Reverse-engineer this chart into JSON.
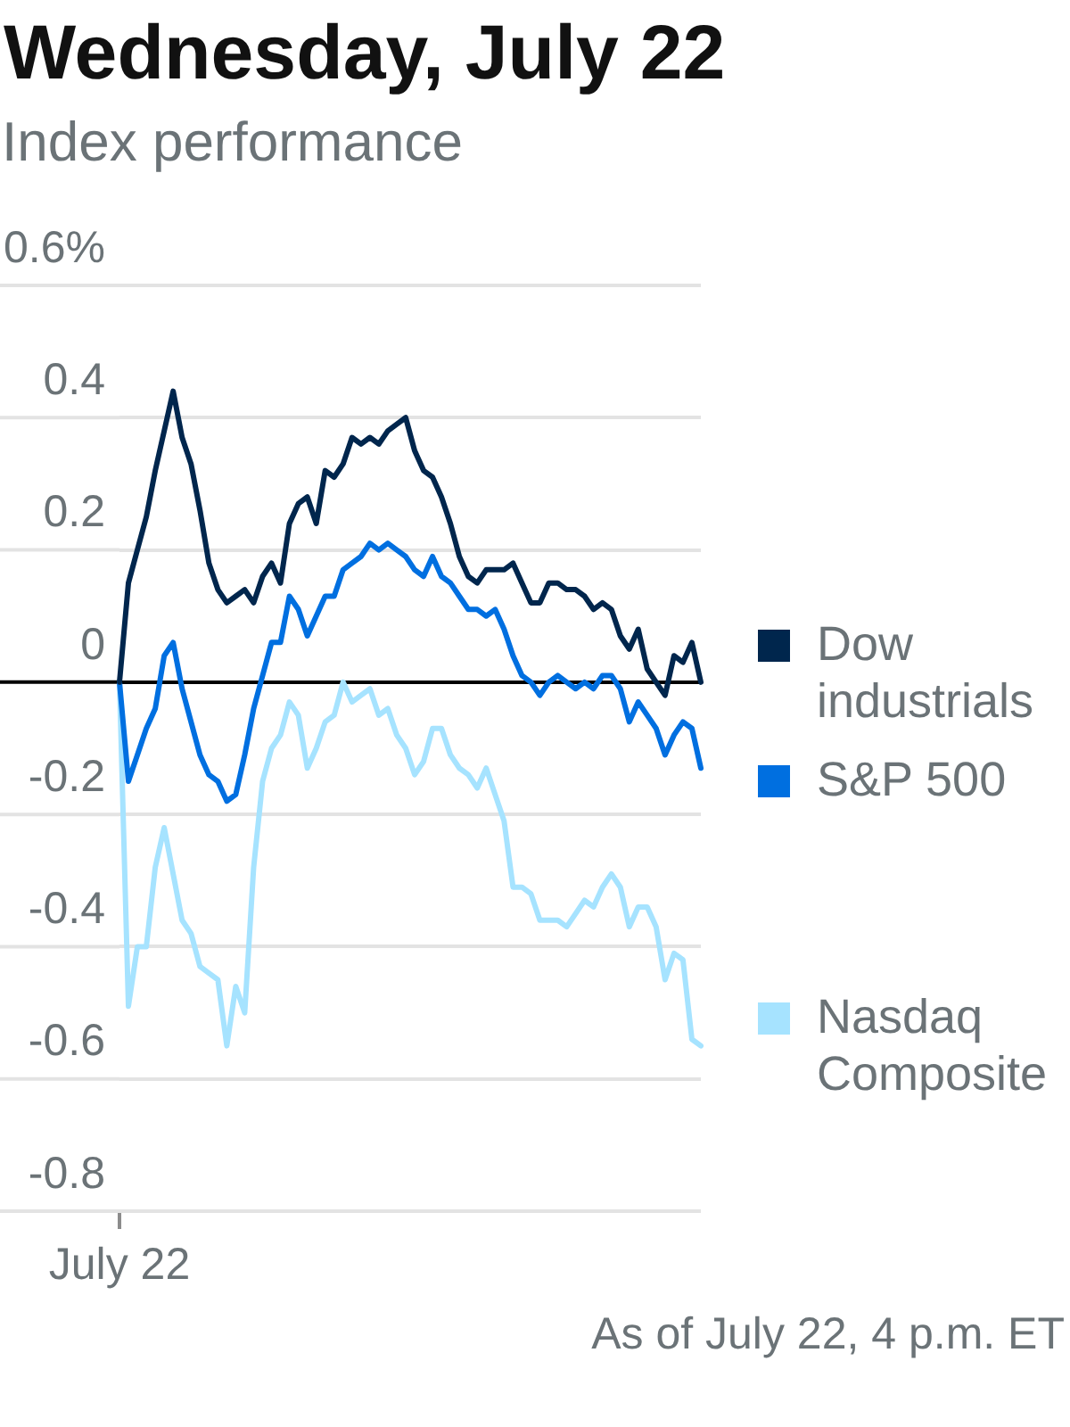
{
  "chart_data": {
    "type": "line",
    "title": "Wednesday, July 22",
    "subtitle": "Index performance",
    "annotations": [
      "As of July 22, 4 p.m. ET"
    ],
    "categories": [
      "July 22",
      null,
      null,
      null,
      null,
      null,
      null,
      null,
      null,
      null,
      null,
      null,
      null,
      null,
      null,
      null,
      null,
      null,
      null,
      null,
      null,
      null,
      null,
      null,
      null,
      null,
      null,
      null,
      null,
      null,
      null,
      null,
      null,
      null,
      null,
      null,
      null,
      null,
      null,
      null,
      null,
      null,
      null,
      null,
      null,
      null,
      null,
      null,
      null,
      null,
      null,
      null,
      null,
      null,
      null,
      null,
      null,
      null,
      null,
      null,
      null,
      null,
      null,
      null,
      null,
      null
    ],
    "series": [
      {
        "name": "Dow industrials",
        "color": "#00264d",
        "values": [
          0,
          0.15,
          0.2,
          0.25,
          0.32,
          0.38,
          0.44,
          0.37,
          0.33,
          0.26,
          0.18,
          0.14,
          0.12,
          0.13,
          0.14,
          0.12,
          0.16,
          0.18,
          0.15,
          0.24,
          0.27,
          0.28,
          0.24,
          0.32,
          0.31,
          0.33,
          0.37,
          0.36,
          0.37,
          0.36,
          0.38,
          0.39,
          0.4,
          0.35,
          0.32,
          0.31,
          0.28,
          0.24,
          0.19,
          0.16,
          0.15,
          0.17,
          0.17,
          0.17,
          0.18,
          0.15,
          0.12,
          0.12,
          0.15,
          0.15,
          0.14,
          0.14,
          0.13,
          0.11,
          0.12,
          0.11,
          0.07,
          0.05,
          0.08,
          0.02,
          0,
          -0.02,
          0.04,
          0.03,
          0.06,
          0
        ]
      },
      {
        "name": "S&P 500",
        "color": "#006fe0",
        "values": [
          0,
          -0.15,
          -0.11,
          -0.07,
          -0.04,
          0.04,
          0.06,
          -0.01,
          -0.06,
          -0.11,
          -0.14,
          -0.15,
          -0.18,
          -0.17,
          -0.11,
          -0.04,
          0.01,
          0.06,
          0.06,
          0.13,
          0.11,
          0.07,
          0.1,
          0.13,
          0.13,
          0.17,
          0.18,
          0.19,
          0.21,
          0.2,
          0.21,
          0.2,
          0.19,
          0.17,
          0.16,
          0.19,
          0.16,
          0.15,
          0.13,
          0.11,
          0.11,
          0.1,
          0.11,
          0.08,
          0.04,
          0.01,
          0,
          -0.02,
          0,
          0.01,
          0,
          -0.01,
          0,
          -0.01,
          0.01,
          0.01,
          -0.01,
          -0.06,
          -0.03,
          -0.05,
          -0.07,
          -0.11,
          -0.08,
          -0.06,
          -0.07,
          -0.13
        ]
      },
      {
        "name": "Nasdaq Composite",
        "color": "#a6e3ff",
        "values": [
          0,
          -0.49,
          -0.4,
          -0.4,
          -0.28,
          -0.22,
          -0.29,
          -0.36,
          -0.38,
          -0.43,
          -0.44,
          -0.45,
          -0.55,
          -0.46,
          -0.5,
          -0.28,
          -0.15,
          -0.1,
          -0.08,
          -0.03,
          -0.05,
          -0.13,
          -0.1,
          -0.06,
          -0.05,
          0,
          -0.03,
          -0.02,
          -0.01,
          -0.05,
          -0.04,
          -0.08,
          -0.1,
          -0.14,
          -0.12,
          -0.07,
          -0.07,
          -0.11,
          -0.13,
          -0.14,
          -0.16,
          -0.13,
          -0.17,
          -0.21,
          -0.31,
          -0.31,
          -0.32,
          -0.36,
          -0.36,
          -0.36,
          -0.37,
          -0.35,
          -0.33,
          -0.34,
          -0.31,
          -0.29,
          -0.31,
          -0.37,
          -0.34,
          -0.34,
          -0.37,
          -0.45,
          -0.41,
          -0.42,
          -0.54,
          -0.55
        ]
      }
    ],
    "ylim": [
      -0.8,
      0.6
    ],
    "yticks": [
      -0.8,
      -0.6,
      -0.4,
      -0.2,
      0,
      0.2,
      0.4,
      {
        "value": 0.6,
        "label": "0.6%"
      }
    ],
    "grid": "y",
    "legend": "right"
  }
}
